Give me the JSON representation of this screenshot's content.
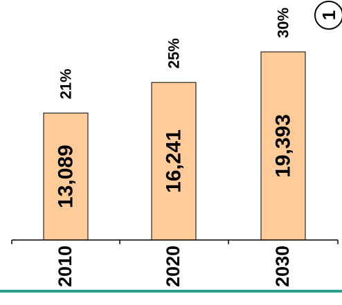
{
  "chart_data": {
    "type": "bar",
    "orientation": "vertical bars, labels rotated 90 degrees",
    "categories": [
      "2010",
      "2020",
      "2030"
    ],
    "values": [
      13089,
      16241,
      19393
    ],
    "value_labels": [
      "13,089",
      "16,241",
      "19,393"
    ],
    "percent_labels": [
      "21%",
      "25%",
      "30%"
    ],
    "ylim": [
      0,
      19393
    ],
    "title": "",
    "xlabel": "",
    "ylabel": "",
    "grid": false,
    "legend": "none"
  },
  "badge": {
    "number": "1"
  },
  "colors": {
    "bar_fill": "#FFCC99",
    "bar_stroke": "#000000",
    "axis": "#000000",
    "bottom_rule": "#2E9E8F",
    "text": "#000000"
  }
}
